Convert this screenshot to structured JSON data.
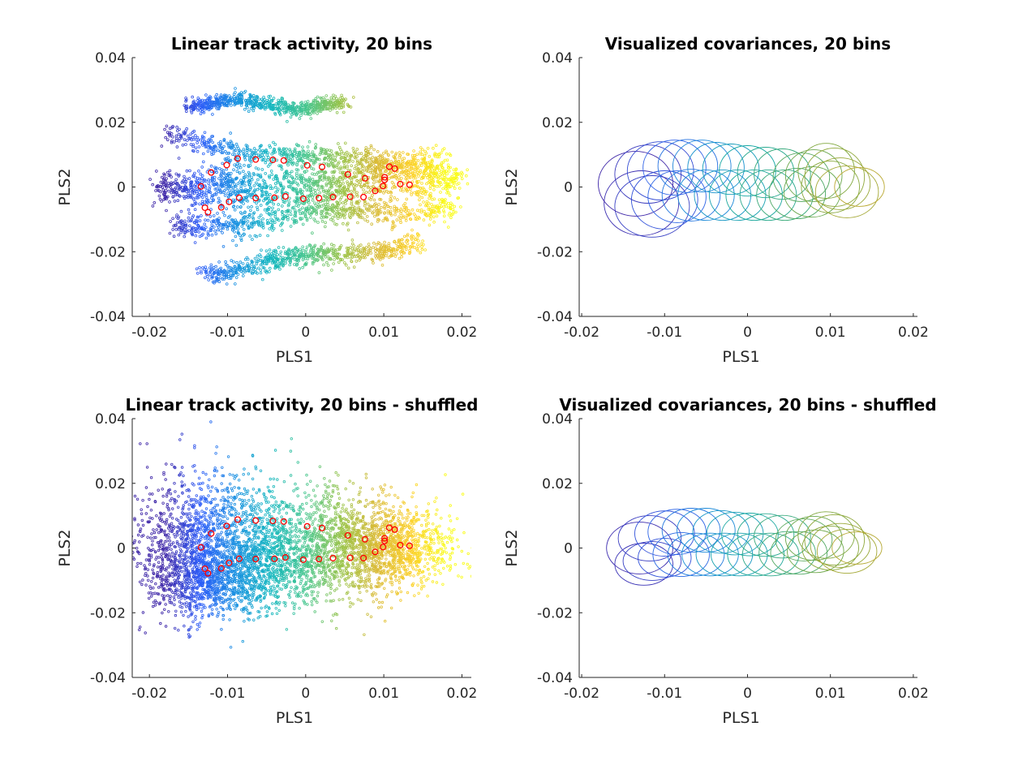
{
  "figure": {
    "layout": "2x2"
  },
  "chart_data": [
    {
      "type": "scatter",
      "title": "Linear track activity, 20 bins",
      "xlabel": "PLS1",
      "ylabel": "PLS2",
      "xlim": [
        -0.0222,
        0.0212
      ],
      "ylim": [
        -0.04,
        0.04
      ],
      "xticks": [
        -0.02,
        -0.01,
        0,
        0.01,
        0.02
      ],
      "xtick_labels": [
        "-0.02",
        "-0.01",
        "0",
        "0.01",
        "0.02"
      ],
      "yticks": [
        -0.04,
        -0.02,
        0,
        0.02,
        0.04
      ],
      "ytick_labels": [
        "-0.04",
        "-0.02",
        "0",
        "0.02",
        "0.04"
      ],
      "colormap": [
        "#3e26a8",
        "#2d5df8",
        "#1b92e2",
        "#14b7c0",
        "#46c68e",
        "#99c44b",
        "#d9ba35",
        "#fbd02a",
        "#f9fb15"
      ],
      "points_note_color": "color encodes PLS1 position (parula colormap)",
      "bin_centers_color": "#ff0000",
      "bin_centers": [
        [
          -0.0134,
          0.0002
        ],
        [
          -0.0121,
          0.0045
        ],
        [
          -0.0101,
          0.0068
        ],
        [
          -0.0087,
          0.0088
        ],
        [
          -0.0064,
          0.0085
        ],
        [
          -0.0042,
          0.0084
        ],
        [
          -0.0028,
          0.0082
        ],
        [
          0.0002,
          0.0067
        ],
        [
          0.0021,
          0.0062
        ],
        [
          0.0054,
          0.0039
        ],
        [
          0.0076,
          0.0027
        ],
        [
          0.0101,
          0.0022
        ],
        [
          0.0107,
          0.0063
        ],
        [
          0.0114,
          0.0057
        ],
        [
          0.0133,
          0.0007
        ],
        [
          0.0121,
          0.0009
        ],
        [
          0.0101,
          0.003
        ],
        [
          0.0099,
          0.0003
        ],
        [
          0.0089,
          -0.0012
        ],
        [
          0.0074,
          -0.0031
        ],
        [
          0.0057,
          -0.003
        ],
        [
          0.0035,
          -0.0031
        ],
        [
          0.0017,
          -0.0034
        ],
        [
          -0.0003,
          -0.0036
        ],
        [
          -0.0026,
          -0.0029
        ],
        [
          -0.004,
          -0.0033
        ],
        [
          -0.0064,
          -0.0034
        ],
        [
          -0.0085,
          -0.0033
        ],
        [
          -0.0098,
          -0.0046
        ],
        [
          -0.0108,
          -0.0063
        ],
        [
          -0.0125,
          -0.0078
        ],
        [
          -0.0129,
          -0.0064
        ]
      ],
      "trajectory_bands": [
        {
          "x0": -0.019,
          "x1": 0.018,
          "y0": 0.0,
          "y1": 0.007,
          "spread": 0.0045
        },
        {
          "x0": -0.019,
          "x1": 0.019,
          "y0": -0.003,
          "y1": 0.0,
          "spread": 0.0045
        },
        {
          "x0": -0.018,
          "x1": 0.02,
          "y0": 0.015,
          "y1": 0.004,
          "spread": 0.003
        },
        {
          "x0": -0.017,
          "x1": 0.019,
          "y0": -0.012,
          "y1": -0.006,
          "spread": 0.0035
        },
        {
          "x0": -0.013,
          "x1": 0.015,
          "y0": -0.026,
          "y1": -0.017,
          "spread": 0.003
        },
        {
          "x0": -0.015,
          "x1": 0.005,
          "y0": 0.026,
          "y1": 0.025,
          "spread": 0.002
        }
      ]
    },
    {
      "type": "ellipses",
      "title": "Visualized covariances, 20 bins",
      "xlabel": "PLS1",
      "ylabel": "PLS2",
      "xlim": [
        -0.0203,
        0.0205
      ],
      "ylim": [
        -0.04,
        0.04
      ],
      "xticks": [
        -0.02,
        -0.01,
        0,
        0.01,
        0.02
      ],
      "xtick_labels": [
        "-0.02",
        "-0.01",
        "0",
        "0.01",
        "0.02"
      ],
      "yticks": [
        -0.04,
        -0.02,
        0,
        0.02,
        0.04
      ],
      "ytick_labels": [
        "-0.04",
        "-0.02",
        "0",
        "0.02",
        "0.04"
      ],
      "ellipses": [
        {
          "cx": -0.0128,
          "cy": -0.005,
          "rx": 0.0045,
          "ry": 0.01
        },
        {
          "cx": -0.0115,
          "cy": -0.006,
          "rx": 0.0045,
          "ry": 0.0095
        },
        {
          "cx": -0.01,
          "cy": -0.004,
          "rx": 0.004,
          "ry": 0.009
        },
        {
          "cx": -0.0135,
          "cy": 0.001,
          "rx": 0.0045,
          "ry": 0.01
        },
        {
          "cx": -0.012,
          "cy": 0.004,
          "rx": 0.004,
          "ry": 0.009
        },
        {
          "cx": -0.0105,
          "cy": 0.005,
          "rx": 0.004,
          "ry": 0.009
        },
        {
          "cx": -0.0088,
          "cy": 0.006,
          "rx": 0.0038,
          "ry": 0.0085
        },
        {
          "cx": -0.0072,
          "cy": 0.0065,
          "rx": 0.0036,
          "ry": 0.0082
        },
        {
          "cx": -0.0055,
          "cy": 0.0065,
          "rx": 0.0035,
          "ry": 0.008
        },
        {
          "cx": -0.0085,
          "cy": -0.003,
          "rx": 0.0035,
          "ry": 0.008
        },
        {
          "cx": -0.0068,
          "cy": -0.0025,
          "rx": 0.0035,
          "ry": 0.008
        },
        {
          "cx": -0.005,
          "cy": -0.0025,
          "rx": 0.0034,
          "ry": 0.0078
        },
        {
          "cx": -0.0038,
          "cy": 0.006,
          "rx": 0.0034,
          "ry": 0.0078
        },
        {
          "cx": -0.002,
          "cy": 0.0055,
          "rx": 0.0034,
          "ry": 0.0078
        },
        {
          "cx": -0.003,
          "cy": -0.0025,
          "rx": 0.0034,
          "ry": 0.0078
        },
        {
          "cx": -0.0012,
          "cy": -0.0025,
          "rx": 0.0034,
          "ry": 0.0078
        },
        {
          "cx": 0.0,
          "cy": 0.005,
          "rx": 0.0034,
          "ry": 0.0078
        },
        {
          "cx": 0.0008,
          "cy": -0.0025,
          "rx": 0.0034,
          "ry": 0.0078
        },
        {
          "cx": 0.0022,
          "cy": 0.0045,
          "rx": 0.0034,
          "ry": 0.0078
        },
        {
          "cx": 0.0025,
          "cy": -0.0025,
          "rx": 0.0034,
          "ry": 0.0078
        },
        {
          "cx": 0.0042,
          "cy": 0.004,
          "rx": 0.0034,
          "ry": 0.0078
        },
        {
          "cx": 0.0045,
          "cy": -0.0025,
          "rx": 0.0034,
          "ry": 0.0078
        },
        {
          "cx": 0.006,
          "cy": -0.002,
          "rx": 0.0034,
          "ry": 0.0078
        },
        {
          "cx": 0.0065,
          "cy": 0.003,
          "rx": 0.0034,
          "ry": 0.0075
        },
        {
          "cx": 0.008,
          "cy": 0.0035,
          "rx": 0.0034,
          "ry": 0.008
        },
        {
          "cx": 0.0078,
          "cy": -0.0015,
          "rx": 0.0034,
          "ry": 0.0078
        },
        {
          "cx": 0.0095,
          "cy": 0.005,
          "rx": 0.0034,
          "ry": 0.0085
        },
        {
          "cx": 0.01,
          "cy": 0.0,
          "rx": 0.0035,
          "ry": 0.008
        },
        {
          "cx": 0.0105,
          "cy": 0.003,
          "rx": 0.0036,
          "ry": 0.009
        },
        {
          "cx": 0.0112,
          "cy": 0.001,
          "rx": 0.0036,
          "ry": 0.008
        },
        {
          "cx": 0.012,
          "cy": -0.0015,
          "rx": 0.0038,
          "ry": 0.008
        },
        {
          "cx": 0.0135,
          "cy": 0.0,
          "rx": 0.003,
          "ry": 0.006
        }
      ]
    },
    {
      "type": "scatter",
      "title": "Linear track activity, 20 bins - shuffled",
      "xlabel": "PLS1",
      "ylabel": "PLS2",
      "xlim": [
        -0.0222,
        0.0212
      ],
      "ylim": [
        -0.04,
        0.04
      ],
      "xticks": [
        -0.02,
        -0.01,
        0,
        0.01,
        0.02
      ],
      "xtick_labels": [
        "-0.02",
        "-0.01",
        "0",
        "0.01",
        "0.02"
      ],
      "yticks": [
        -0.04,
        -0.02,
        0,
        0.02,
        0.04
      ],
      "ytick_labels": [
        "-0.04",
        "-0.02",
        "0",
        "0.02",
        "0.04"
      ],
      "colormap": [
        "#3e26a8",
        "#2d5df8",
        "#1b92e2",
        "#14b7c0",
        "#46c68e",
        "#99c44b",
        "#d9ba35",
        "#fbd02a",
        "#f9fb15"
      ],
      "bin_centers_color": "#ff0000",
      "bin_centers": [
        [
          -0.0134,
          0.0002
        ],
        [
          -0.0121,
          0.0045
        ],
        [
          -0.0101,
          0.0068
        ],
        [
          -0.0087,
          0.0088
        ],
        [
          -0.0064,
          0.0085
        ],
        [
          -0.0042,
          0.0084
        ],
        [
          -0.0028,
          0.0082
        ],
        [
          0.0002,
          0.0067
        ],
        [
          0.0021,
          0.0062
        ],
        [
          0.0054,
          0.0039
        ],
        [
          0.0076,
          0.0027
        ],
        [
          0.0101,
          0.0022
        ],
        [
          0.0107,
          0.0063
        ],
        [
          0.0114,
          0.0057
        ],
        [
          0.0133,
          0.0007
        ],
        [
          0.0121,
          0.0009
        ],
        [
          0.0101,
          0.003
        ],
        [
          0.0099,
          0.0003
        ],
        [
          0.0089,
          -0.0012
        ],
        [
          0.0074,
          -0.0031
        ],
        [
          0.0057,
          -0.003
        ],
        [
          0.0035,
          -0.0031
        ],
        [
          0.0017,
          -0.0034
        ],
        [
          -0.0003,
          -0.0036
        ],
        [
          -0.0026,
          -0.0029
        ],
        [
          -0.004,
          -0.0033
        ],
        [
          -0.0064,
          -0.0034
        ],
        [
          -0.0085,
          -0.0033
        ],
        [
          -0.0098,
          -0.0046
        ],
        [
          -0.0108,
          -0.0063
        ],
        [
          -0.0125,
          -0.0078
        ],
        [
          -0.0129,
          -0.0064
        ]
      ],
      "clusters": [
        {
          "cx": -0.012,
          "cy": -0.01,
          "sx": 0.004,
          "sy": 0.0055,
          "n": 900
        },
        {
          "cx": -0.01,
          "cy": 0.005,
          "sx": 0.005,
          "sy": 0.009,
          "n": 900
        },
        {
          "cx": -0.002,
          "cy": -0.005,
          "sx": 0.005,
          "sy": 0.007,
          "n": 800
        },
        {
          "cx": 0.004,
          "cy": 0.003,
          "sx": 0.005,
          "sy": 0.008,
          "n": 700
        },
        {
          "cx": 0.011,
          "cy": 0.0,
          "sx": 0.004,
          "sy": 0.006,
          "n": 1100
        },
        {
          "cx": -0.015,
          "cy": 0.0,
          "sx": 0.004,
          "sy": 0.011,
          "n": 500
        }
      ]
    },
    {
      "type": "ellipses",
      "title": "Visualized covariances, 20 bins - shuffled",
      "xlabel": "PLS1",
      "ylabel": "PLS2",
      "xlim": [
        -0.0203,
        0.0205
      ],
      "ylim": [
        -0.04,
        0.04
      ],
      "xticks": [
        -0.02,
        -0.01,
        0,
        0.01,
        0.02
      ],
      "xtick_labels": [
        "-0.02",
        "-0.01",
        "0",
        "0.01",
        "0.02"
      ],
      "yticks": [
        -0.04,
        -0.02,
        0,
        0.02,
        0.04
      ],
      "ytick_labels": [
        "-0.04",
        "-0.02",
        "0",
        "0.02",
        "0.04"
      ],
      "ellipses": [
        {
          "cx": -0.0125,
          "cy": -0.005,
          "rx": 0.0035,
          "ry": 0.0065
        },
        {
          "cx": -0.0115,
          "cy": -0.004,
          "rx": 0.0035,
          "ry": 0.006
        },
        {
          "cx": -0.01,
          "cy": -0.003,
          "rx": 0.0032,
          "ry": 0.006
        },
        {
          "cx": -0.013,
          "cy": 0.0,
          "rx": 0.004,
          "ry": 0.008
        },
        {
          "cx": -0.0118,
          "cy": 0.003,
          "rx": 0.0038,
          "ry": 0.007
        },
        {
          "cx": -0.01,
          "cy": 0.0045,
          "rx": 0.0036,
          "ry": 0.007
        },
        {
          "cx": -0.0085,
          "cy": 0.005,
          "rx": 0.0035,
          "ry": 0.007
        },
        {
          "cx": -0.0068,
          "cy": 0.0055,
          "rx": 0.0035,
          "ry": 0.0068
        },
        {
          "cx": -0.005,
          "cy": 0.0055,
          "rx": 0.0035,
          "ry": 0.0068
        },
        {
          "cx": -0.008,
          "cy": -0.002,
          "rx": 0.0034,
          "ry": 0.0068
        },
        {
          "cx": -0.0062,
          "cy": -0.002,
          "rx": 0.0034,
          "ry": 0.0066
        },
        {
          "cx": -0.0045,
          "cy": -0.002,
          "rx": 0.0034,
          "ry": 0.0066
        },
        {
          "cx": -0.0032,
          "cy": 0.005,
          "rx": 0.0034,
          "ry": 0.0066
        },
        {
          "cx": -0.0015,
          "cy": 0.0045,
          "rx": 0.0034,
          "ry": 0.0066
        },
        {
          "cx": -0.0028,
          "cy": -0.002,
          "rx": 0.0034,
          "ry": 0.0066
        },
        {
          "cx": -0.001,
          "cy": -0.002,
          "rx": 0.0034,
          "ry": 0.0066
        },
        {
          "cx": 0.0003,
          "cy": 0.0042,
          "rx": 0.0034,
          "ry": 0.0066
        },
        {
          "cx": 0.001,
          "cy": -0.002,
          "rx": 0.0034,
          "ry": 0.0066
        },
        {
          "cx": 0.0022,
          "cy": 0.004,
          "rx": 0.0034,
          "ry": 0.0066
        },
        {
          "cx": 0.0028,
          "cy": -0.002,
          "rx": 0.0034,
          "ry": 0.0066
        },
        {
          "cx": 0.0042,
          "cy": 0.0035,
          "rx": 0.0034,
          "ry": 0.0066
        },
        {
          "cx": 0.0048,
          "cy": -0.0015,
          "rx": 0.0034,
          "ry": 0.0066
        },
        {
          "cx": 0.0062,
          "cy": -0.0015,
          "rx": 0.0034,
          "ry": 0.0066
        },
        {
          "cx": 0.0068,
          "cy": 0.0025,
          "rx": 0.0034,
          "ry": 0.0065
        },
        {
          "cx": 0.008,
          "cy": 0.003,
          "rx": 0.0034,
          "ry": 0.0068
        },
        {
          "cx": 0.0082,
          "cy": -0.001,
          "rx": 0.0034,
          "ry": 0.0066
        },
        {
          "cx": 0.0095,
          "cy": 0.004,
          "rx": 0.0034,
          "ry": 0.0072
        },
        {
          "cx": 0.01,
          "cy": 0.0,
          "rx": 0.0034,
          "ry": 0.0068
        },
        {
          "cx": 0.0105,
          "cy": 0.0025,
          "rx": 0.0036,
          "ry": 0.0078
        },
        {
          "cx": 0.0112,
          "cy": 0.0008,
          "rx": 0.0036,
          "ry": 0.0068
        },
        {
          "cx": 0.012,
          "cy": -0.001,
          "rx": 0.0036,
          "ry": 0.0068
        },
        {
          "cx": 0.0132,
          "cy": 0.0,
          "rx": 0.003,
          "ry": 0.005
        }
      ]
    }
  ]
}
